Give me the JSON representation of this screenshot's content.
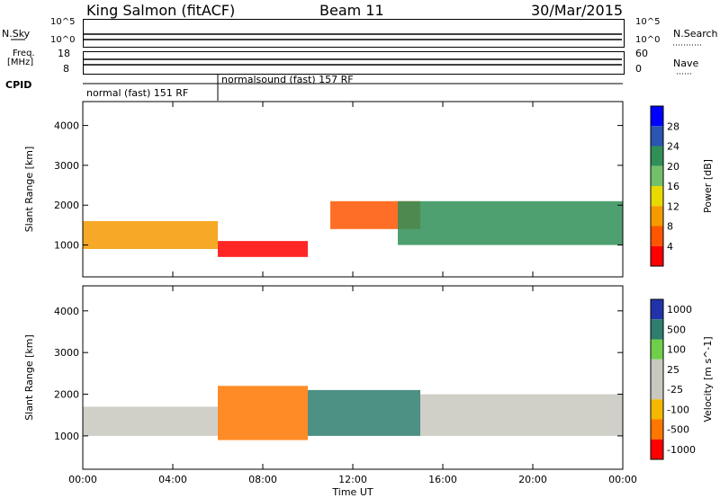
{
  "header": {
    "radar": "King Salmon (fitACF)",
    "beam": "Beam 11",
    "date": "30/Mar/2015"
  },
  "top_panels": {
    "nsky_label": "N.Sky",
    "nsearch_label": "N.Search",
    "nsky_ticks": [
      "10^5",
      "10^0"
    ],
    "nsearch_ticks": [
      "10^5",
      "10^0"
    ],
    "freq_label_line1": "Freq.",
    "freq_label_line2": "[MHz]",
    "freq_ticks": [
      "18",
      "8"
    ],
    "nave_label": "Nave",
    "nave_ticks": [
      "60",
      "0"
    ],
    "cpid_label": "CPID",
    "cpid_modes": [
      "normal (fast) 151 RF",
      "normalsound (fast) 157 RF"
    ]
  },
  "chart_data": [
    {
      "type": "heatmap",
      "title": "",
      "xlabel": "Time UT",
      "ylabel": "Slant Range [km]",
      "x_ticks": [
        "00:00",
        "04:00",
        "08:00",
        "12:00",
        "16:00",
        "20:00",
        "00:00"
      ],
      "y_ticks": [
        1000,
        2000,
        3000,
        4000
      ],
      "xlim": [
        0,
        24
      ],
      "ylim": [
        200,
        4600
      ],
      "colorbar": {
        "label": "Power [dB]",
        "ticks": [
          "4",
          "8",
          "12",
          "16",
          "20",
          "24",
          "28"
        ],
        "colors": [
          "#0000ff",
          "#2a55b0",
          "#2f8f57",
          "#73c06a",
          "#e8d900",
          "#f59a00",
          "#ff5500",
          "#ff0000"
        ]
      },
      "bands": [
        {
          "t0": 0,
          "t1": 6,
          "r0": 900,
          "r1": 1600,
          "level": 5
        },
        {
          "t0": 6,
          "t1": 10,
          "r0": 700,
          "r1": 1100,
          "level": 7
        },
        {
          "t0": 11,
          "t1": 15,
          "r0": 1400,
          "r1": 2100,
          "level": 6
        },
        {
          "t0": 14,
          "t1": 24,
          "r0": 1000,
          "r1": 2100,
          "level": 2
        }
      ]
    },
    {
      "type": "heatmap",
      "title": "",
      "xlabel": "Time UT",
      "ylabel": "Slant Range [km]",
      "x_ticks": [
        "00:00",
        "04:00",
        "08:00",
        "12:00",
        "16:00",
        "20:00",
        "00:00"
      ],
      "y_ticks": [
        1000,
        2000,
        3000,
        4000
      ],
      "xlim": [
        0,
        24
      ],
      "ylim": [
        200,
        4600
      ],
      "colorbar": {
        "label": "Velocity [m s^-1]",
        "ticks": [
          "1000",
          "500",
          "100",
          "25",
          "-25",
          "-100",
          "-500",
          "-1000"
        ],
        "colors": [
          "#2233aa",
          "#2e7d6e",
          "#6fcf4a",
          "#c8c8c0",
          "#c8c8c0",
          "#f5b800",
          "#ff7700",
          "#ff0000"
        ]
      },
      "bands": [
        {
          "t0": 0,
          "t1": 6,
          "r0": 1000,
          "r1": 1700,
          "level": 3
        },
        {
          "t0": 6,
          "t1": 10,
          "r0": 900,
          "r1": 2200,
          "level": 6
        },
        {
          "t0": 10,
          "t1": 15,
          "r0": 1000,
          "r1": 2100,
          "level": 1
        },
        {
          "t0": 15,
          "t1": 24,
          "r0": 1000,
          "r1": 2000,
          "level": 3
        }
      ]
    }
  ]
}
